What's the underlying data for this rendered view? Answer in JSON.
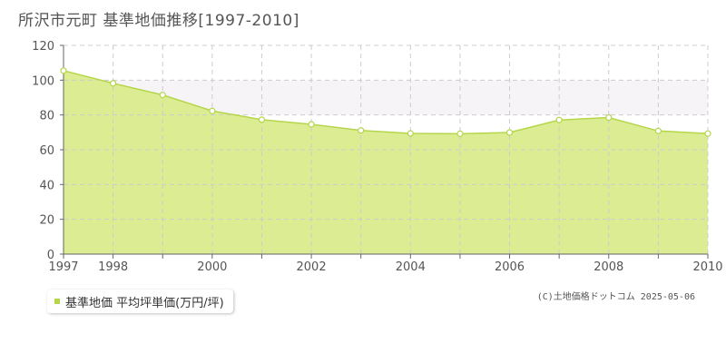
{
  "title": "所沢市元町 基準地価推移[1997-2010]",
  "legend_label": "基準地価 平均坪単価(万円/坪)",
  "copyright": "(C)土地価格ドットコム 2025-05-06",
  "colors": {
    "fill": "#dcec93",
    "line": "#b5d64a",
    "band": "#f7f4f8",
    "grid": "#cccccc",
    "axis": "#666666"
  },
  "chart_data": {
    "type": "area",
    "title": "所沢市元町 基準地価推移[1997-2010]",
    "x": [
      1997,
      1998,
      1999,
      2000,
      2001,
      2002,
      2003,
      2004,
      2005,
      2006,
      2007,
      2008,
      2009,
      2010
    ],
    "series": [
      {
        "name": "基準地価 平均坪単価(万円/坪)",
        "values": [
          105.5,
          98.2,
          91.5,
          82.3,
          77.3,
          74.6,
          71.1,
          69.4,
          69.2,
          69.9,
          77.1,
          78.5,
          70.8,
          69.3
        ]
      }
    ],
    "xlim": [
      1997,
      2010
    ],
    "ylim": [
      0,
      120
    ],
    "y_ticks": [
      0,
      20,
      40,
      60,
      80,
      100,
      120
    ],
    "x_tick_labels": [
      "1997",
      "1998",
      "2000",
      "2002",
      "2004",
      "2006",
      "2008",
      "2010"
    ],
    "grid": true,
    "legend_position": "bottom-left"
  }
}
